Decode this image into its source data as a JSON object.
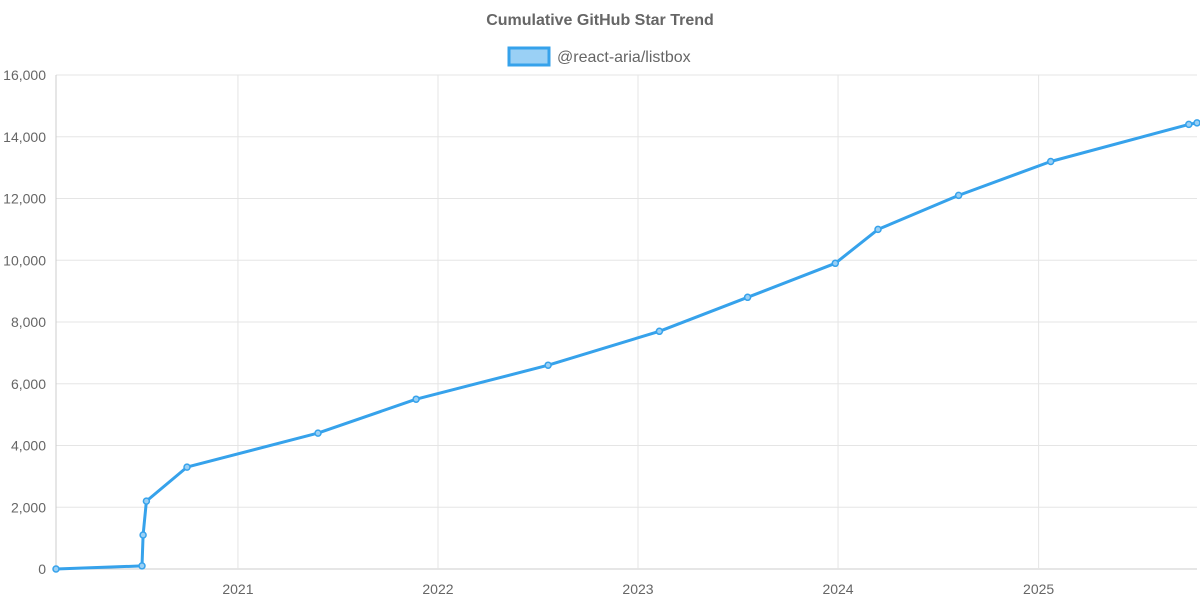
{
  "chart_data": {
    "type": "line",
    "title": "Cumulative GitHub Star Trend",
    "xlabel": "",
    "ylabel": "",
    "x_axis_type": "date",
    "xlim": [
      "2020-02-04",
      "2025-10-17"
    ],
    "ylim": [
      0,
      16000
    ],
    "y_ticks": [
      0,
      2000,
      4000,
      6000,
      8000,
      10000,
      12000,
      14000,
      16000
    ],
    "y_tick_labels": [
      "0",
      "2,000",
      "4,000",
      "6,000",
      "8,000",
      "10,000",
      "12,000",
      "14,000",
      "16,000"
    ],
    "x_ticks": [
      "2021-01-01",
      "2022-01-01",
      "2023-01-01",
      "2024-01-01",
      "2025-01-01"
    ],
    "x_tick_labels": [
      "2021",
      "2022",
      "2023",
      "2024",
      "2025"
    ],
    "grid": true,
    "legend_position": "top-center",
    "series": [
      {
        "name": "@react-aria/listbox",
        "color": "#36a2eb",
        "fill_color": "#9ad0f5",
        "points": [
          {
            "x": "2020-02-04",
            "y": 0
          },
          {
            "x": "2020-07-10",
            "y": 100
          },
          {
            "x": "2020-07-12",
            "y": 1100
          },
          {
            "x": "2020-07-18",
            "y": 2200
          },
          {
            "x": "2020-09-30",
            "y": 3300
          },
          {
            "x": "2021-05-27",
            "y": 4400
          },
          {
            "x": "2021-11-22",
            "y": 5500
          },
          {
            "x": "2022-07-21",
            "y": 6600
          },
          {
            "x": "2023-02-09",
            "y": 7700
          },
          {
            "x": "2023-07-20",
            "y": 8800
          },
          {
            "x": "2023-12-27",
            "y": 9900
          },
          {
            "x": "2024-03-14",
            "y": 11000
          },
          {
            "x": "2024-08-08",
            "y": 12100
          },
          {
            "x": "2025-01-23",
            "y": 13200
          },
          {
            "x": "2025-10-02",
            "y": 14400
          },
          {
            "x": "2025-10-17",
            "y": 14450
          }
        ]
      }
    ]
  }
}
